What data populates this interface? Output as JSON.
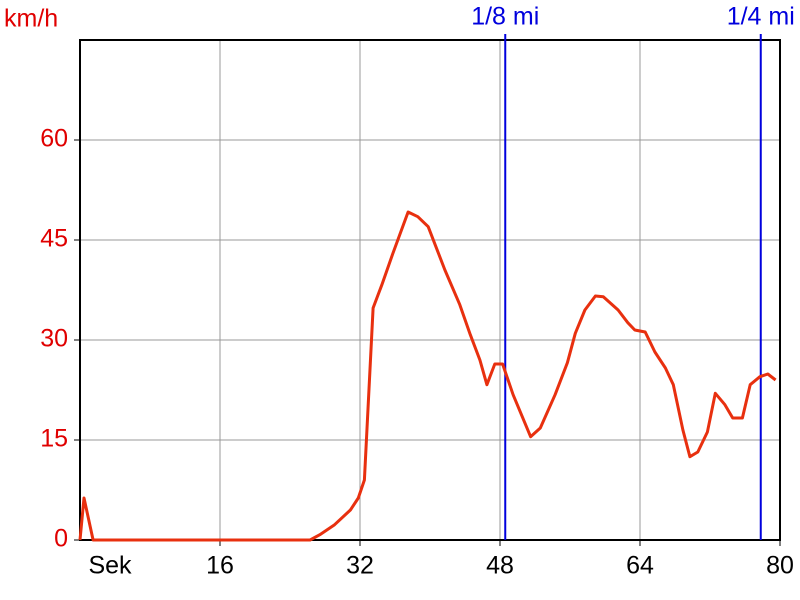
{
  "chart_data": {
    "type": "line",
    "ylabel": "km/h",
    "xlabel": "Sek",
    "xlim": [
      0,
      80
    ],
    "ylim": [
      0,
      75
    ],
    "xticks": [
      16,
      32,
      48,
      64,
      80
    ],
    "yticks": [
      0,
      15,
      30,
      45,
      60
    ],
    "grid": true,
    "series": [
      {
        "color": "#e8300f",
        "x": [
          0,
          0.46,
          1.5,
          26.3,
          27.4,
          29.1,
          30.9,
          31.8,
          32.5,
          33.5,
          34.5,
          35.7,
          37.5,
          38.6,
          39.8,
          41.7,
          43.4,
          44.6,
          45.7,
          46.5,
          47.4,
          48.3,
          49.5,
          51.5,
          52.6,
          54.3,
          55.7,
          56.6,
          57.7,
          58.9,
          59.8,
          61.5,
          62.6,
          63.4,
          64.6,
          65.7,
          66.9,
          67.8,
          68.9,
          69.7,
          70.6,
          71.7,
          72.6,
          73.7,
          74.6,
          75.7,
          76.6,
          77.7,
          78.6,
          79.5
        ],
        "values": [
          0,
          6.3,
          0,
          0,
          0.8,
          2.3,
          4.5,
          6.3,
          9,
          34.8,
          38.3,
          42.8,
          49.2,
          48.5,
          47,
          40.5,
          35.3,
          30.8,
          27,
          23.3,
          26.4,
          26.4,
          21.8,
          15.5,
          16.8,
          21.8,
          26.6,
          31,
          34.5,
          36.6,
          36.5,
          34.5,
          32.6,
          31.5,
          31.2,
          28.2,
          25.8,
          23.3,
          16.5,
          12.5,
          13.2,
          16.2,
          22,
          20.3,
          18.3,
          18.3,
          23.3,
          24.5,
          24.9,
          24
        ]
      }
    ],
    "annotations": [
      {
        "label": "1/8 mi",
        "x": 48.6,
        "color": "#0000dd"
      },
      {
        "label": "1/4 mi",
        "x": 77.8,
        "color": "#0000dd"
      }
    ]
  }
}
